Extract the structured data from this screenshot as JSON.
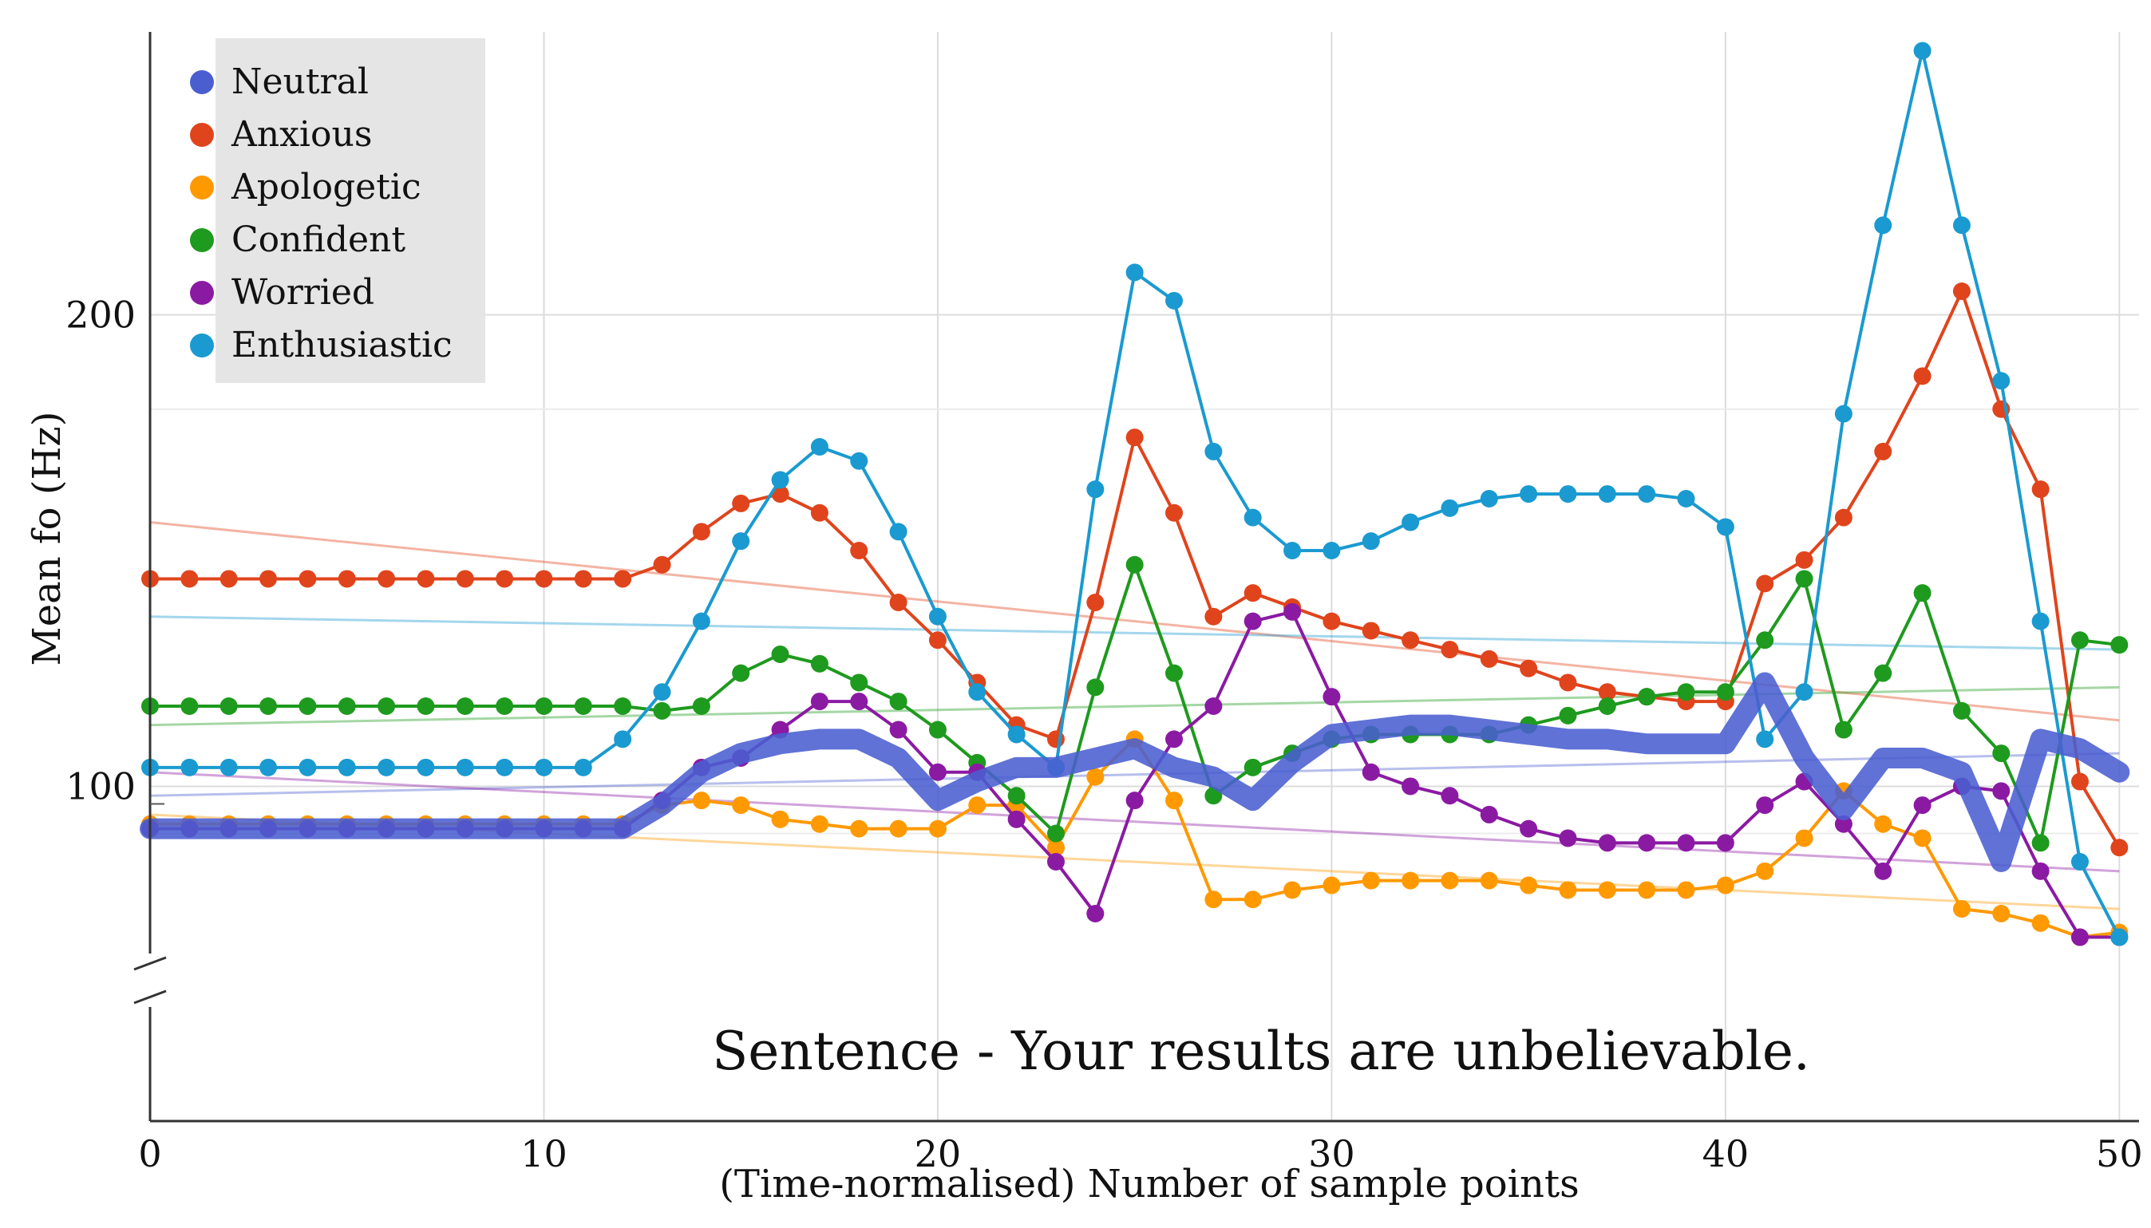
{
  "chart_data": {
    "type": "line",
    "title": "",
    "annotation": "Sentence - Your results are unbelievable.",
    "xlabel": "(Time-normalised) Number of sample points",
    "ylabel": "Mean fo (Hz)",
    "xlim": [
      0,
      50.5
    ],
    "ylim": [
      29,
      260
    ],
    "x_ticks": [
      0,
      10,
      20,
      30,
      40,
      50
    ],
    "x_tick_labels": [
      "0",
      "10",
      "20",
      "30",
      "40",
      "50"
    ],
    "y_ticks": [
      100,
      200
    ],
    "y_tick_labels": [
      "100",
      "200"
    ],
    "axis_break": "y",
    "grid": true,
    "legend_position": "top-left",
    "x": [
      0,
      1,
      2,
      3,
      4,
      5,
      6,
      7,
      8,
      9,
      10,
      11,
      12,
      13,
      14,
      15,
      16,
      17,
      18,
      19,
      20,
      21,
      22,
      23,
      24,
      25,
      26,
      27,
      28,
      29,
      30,
      31,
      32,
      33,
      34,
      35,
      36,
      37,
      38,
      39,
      40,
      41,
      42,
      43,
      44,
      45,
      46,
      47,
      48,
      49,
      50
    ],
    "series": [
      {
        "name": "Neutral",
        "color": "#4a5ed0",
        "style": "thick",
        "values": [
          91,
          91,
          91,
          91,
          91,
          91,
          91,
          91,
          91,
          91,
          91,
          91,
          91,
          96,
          103,
          107,
          109,
          110,
          110,
          106,
          97,
          101,
          104,
          104,
          106,
          108,
          104,
          102,
          97,
          105,
          111,
          112,
          113,
          113,
          112,
          111,
          110,
          110,
          109,
          109,
          109,
          122,
          106,
          95,
          106,
          106,
          103,
          84,
          110,
          108,
          103
        ],
        "trend": [
          98,
          107
        ]
      },
      {
        "name": "Anxious",
        "color": "#e0441c",
        "style": "dots",
        "values": [
          144,
          144,
          144,
          144,
          144,
          144,
          144,
          144,
          144,
          144,
          144,
          144,
          144,
          147,
          154,
          160,
          162,
          158,
          150,
          139,
          131,
          122,
          113,
          110,
          139,
          174,
          158,
          136,
          141,
          138,
          135,
          133,
          131,
          129,
          127,
          125,
          122,
          120,
          119,
          118,
          118,
          143,
          148,
          157,
          171,
          187,
          205,
          180,
          163,
          101,
          87
        ],
        "trend": [
          156,
          114
        ]
      },
      {
        "name": "Apologetic",
        "color": "#ff9900",
        "style": "dots",
        "values": [
          92,
          92,
          92,
          92,
          92,
          92,
          92,
          92,
          92,
          92,
          92,
          92,
          92,
          96,
          97,
          96,
          93,
          92,
          91,
          91,
          91,
          96,
          96,
          87,
          102,
          110,
          97,
          76,
          76,
          78,
          79,
          80,
          80,
          80,
          80,
          79,
          78,
          78,
          78,
          78,
          79,
          82,
          89,
          99,
          92,
          89,
          74,
          73,
          71,
          68,
          69
        ],
        "trend": [
          94,
          74
        ]
      },
      {
        "name": "Confident",
        "color": "#1e9a1e",
        "style": "dots",
        "values": [
          117,
          117,
          117,
          117,
          117,
          117,
          117,
          117,
          117,
          117,
          117,
          117,
          117,
          116,
          117,
          124,
          128,
          126,
          122,
          118,
          112,
          105,
          98,
          90,
          121,
          147,
          124,
          98,
          104,
          107,
          110,
          111,
          111,
          111,
          111,
          113,
          115,
          117,
          119,
          120,
          120,
          131,
          144,
          112,
          124,
          141,
          116,
          107,
          88,
          131,
          130
        ],
        "trend": [
          113,
          121
        ]
      },
      {
        "name": "Worried",
        "color": "#8b1aa3",
        "style": "dots",
        "values": [
          91,
          91,
          91,
          91,
          91,
          91,
          91,
          91,
          91,
          91,
          91,
          91,
          91,
          97,
          104,
          106,
          112,
          118,
          118,
          112,
          103,
          103,
          93,
          84,
          73,
          97,
          110,
          117,
          135,
          137,
          119,
          103,
          100,
          98,
          94,
          91,
          89,
          88,
          88,
          88,
          88,
          96,
          101,
          92,
          82,
          96,
          100,
          99,
          82,
          68,
          68
        ],
        "trend": [
          103,
          82
        ]
      },
      {
        "name": "Enthusiastic",
        "color": "#1a9ad0",
        "style": "dots",
        "values": [
          104,
          104,
          104,
          104,
          104,
          104,
          104,
          104,
          104,
          104,
          104,
          104,
          110,
          120,
          135,
          152,
          165,
          172,
          169,
          154,
          136,
          120,
          111,
          104,
          163,
          209,
          203,
          171,
          157,
          150,
          150,
          152,
          156,
          159,
          161,
          162,
          162,
          162,
          162,
          161,
          155,
          110,
          120,
          179,
          219,
          256,
          219,
          186,
          135,
          84,
          68
        ],
        "trend": [
          136,
          129
        ]
      }
    ]
  }
}
